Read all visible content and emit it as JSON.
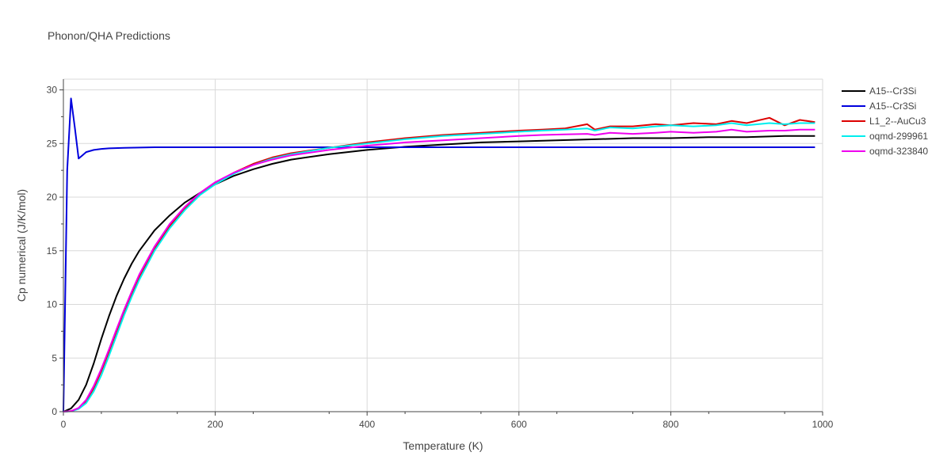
{
  "chart_data": {
    "type": "line",
    "title": "Phonon/QHA Predictions",
    "xlabel": "Temperature (K)",
    "ylabel": "Cp numerical (J/K/mol)",
    "xlim": [
      0,
      1000
    ],
    "ylim": [
      0,
      31
    ],
    "xticks": [
      0,
      200,
      400,
      600,
      800,
      1000
    ],
    "yticks": [
      0,
      5,
      10,
      15,
      20,
      25,
      30
    ],
    "grid": true,
    "legend": "top-right",
    "series": [
      {
        "name": "A15--Cr3Si",
        "color": "#000000",
        "x": [
          0,
          10,
          20,
          30,
          40,
          50,
          60,
          70,
          80,
          90,
          100,
          120,
          140,
          160,
          180,
          200,
          225,
          250,
          275,
          300,
          350,
          400,
          450,
          500,
          550,
          600,
          650,
          700,
          750,
          800,
          850,
          900,
          950,
          990
        ],
        "y": [
          0,
          0.3,
          1.1,
          2.5,
          4.5,
          6.8,
          8.9,
          10.8,
          12.4,
          13.8,
          15.0,
          16.9,
          18.3,
          19.5,
          20.4,
          21.2,
          22.0,
          22.6,
          23.1,
          23.5,
          24.0,
          24.4,
          24.7,
          24.9,
          25.1,
          25.2,
          25.3,
          25.4,
          25.5,
          25.5,
          25.6,
          25.6,
          25.7,
          25.7
        ]
      },
      {
        "name": "A15--Cr3Si",
        "color": "#0000dd",
        "x": [
          0,
          5,
          10,
          15,
          20,
          25,
          30,
          40,
          50,
          60,
          80,
          100,
          120,
          200,
          400,
          600,
          800,
          990
        ],
        "y": [
          0,
          22.5,
          29.2,
          26.5,
          23.6,
          23.9,
          24.2,
          24.4,
          24.5,
          24.55,
          24.6,
          24.62,
          24.65,
          24.65,
          24.65,
          24.65,
          24.65,
          24.65
        ]
      },
      {
        "name": "L1_2--AuCu3",
        "color": "#dd0000",
        "x": [
          0,
          10,
          20,
          30,
          40,
          50,
          60,
          70,
          80,
          90,
          100,
          120,
          140,
          160,
          180,
          200,
          225,
          250,
          275,
          300,
          350,
          400,
          450,
          500,
          550,
          600,
          630,
          660,
          690,
          700,
          720,
          750,
          780,
          800,
          830,
          860,
          880,
          900,
          930,
          950,
          970,
          990
        ],
        "y": [
          0,
          0.05,
          0.3,
          1.0,
          2.2,
          3.8,
          5.6,
          7.5,
          9.3,
          11.0,
          12.6,
          15.2,
          17.3,
          18.9,
          20.3,
          21.3,
          22.3,
          23.1,
          23.7,
          24.1,
          24.6,
          25.1,
          25.5,
          25.8,
          26.0,
          26.2,
          26.3,
          26.4,
          26.8,
          26.3,
          26.6,
          26.6,
          26.8,
          26.7,
          26.9,
          26.8,
          27.1,
          26.9,
          27.4,
          26.7,
          27.2,
          27.0
        ]
      },
      {
        "name": "oqmd-299961",
        "color": "#00eeee",
        "x": [
          0,
          10,
          20,
          30,
          40,
          50,
          60,
          70,
          80,
          90,
          100,
          120,
          140,
          160,
          180,
          200,
          225,
          250,
          275,
          300,
          350,
          400,
          450,
          500,
          550,
          600,
          630,
          660,
          690,
          700,
          720,
          750,
          780,
          800,
          830,
          860,
          880,
          900,
          930,
          950,
          970,
          990
        ],
        "y": [
          0,
          0.04,
          0.25,
          0.8,
          1.9,
          3.4,
          5.2,
          7.1,
          9.0,
          10.7,
          12.3,
          15.0,
          17.1,
          18.8,
          20.2,
          21.2,
          22.2,
          23.0,
          23.6,
          24.0,
          24.6,
          25.0,
          25.4,
          25.7,
          25.9,
          26.1,
          26.2,
          26.3,
          26.4,
          26.2,
          26.5,
          26.4,
          26.6,
          26.7,
          26.6,
          26.7,
          26.9,
          26.7,
          26.9,
          26.8,
          26.9,
          26.9
        ]
      },
      {
        "name": "oqmd-323840",
        "color": "#ee00ee",
        "x": [
          0,
          10,
          20,
          30,
          40,
          50,
          60,
          70,
          80,
          90,
          100,
          120,
          140,
          160,
          180,
          200,
          225,
          250,
          275,
          300,
          350,
          400,
          450,
          500,
          550,
          600,
          630,
          660,
          690,
          700,
          720,
          750,
          780,
          800,
          830,
          860,
          880,
          900,
          930,
          950,
          970,
          990
        ],
        "y": [
          0,
          0.05,
          0.35,
          1.1,
          2.4,
          4.0,
          5.8,
          7.7,
          9.5,
          11.2,
          12.8,
          15.4,
          17.5,
          19.1,
          20.4,
          21.4,
          22.3,
          23.0,
          23.5,
          23.9,
          24.4,
          24.8,
          25.1,
          25.3,
          25.5,
          25.7,
          25.8,
          25.85,
          25.9,
          25.8,
          26.0,
          25.9,
          26.0,
          26.1,
          26.0,
          26.1,
          26.3,
          26.1,
          26.2,
          26.2,
          26.3,
          26.3
        ]
      }
    ]
  }
}
